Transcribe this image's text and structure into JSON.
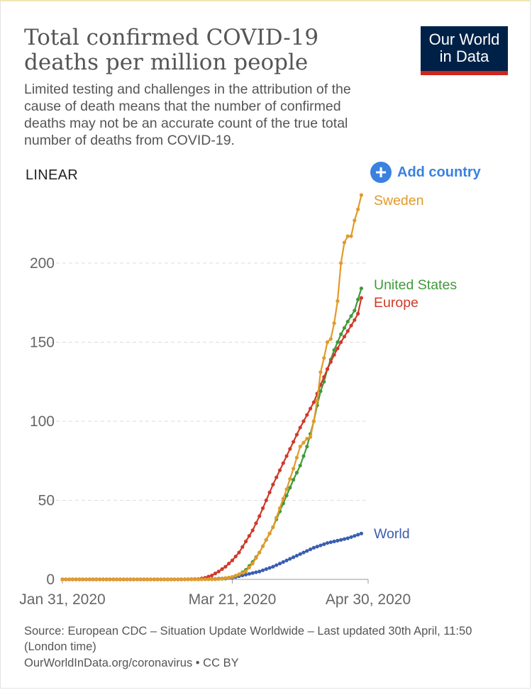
{
  "header": {
    "title": "Total confirmed COVID-19 deaths per million people",
    "subtitle": "Limited testing and challenges in the attribution of the cause of death means that the number of confirmed deaths may not be an accurate count of the true total number of deaths from COVID-19."
  },
  "logo": {
    "line1": "Our World",
    "line2": "in Data"
  },
  "controls": {
    "scale_label": "LINEAR",
    "add_country_label": "Add country",
    "add_icon": "+"
  },
  "footer": {
    "source": "Source: European CDC – Situation Update Worldwide – Last updated 30th April, 11:50 (London time)",
    "license": "OurWorldInData.org/coronavirus • CC BY"
  },
  "colors": {
    "sweden": "#e29a2a",
    "united_states": "#3f9a3a",
    "europe": "#cf3a2a",
    "world": "#3a5db0",
    "grid": "#dddddd",
    "axis": "#999999",
    "tick_text": "#666666"
  },
  "chart_data": {
    "type": "line",
    "title": "Total confirmed COVID-19 deaths per million people",
    "xlabel": "",
    "ylabel": "",
    "x_range_days": [
      0,
      90
    ],
    "x_ticks": [
      {
        "day": 0,
        "label": "Jan 31, 2020"
      },
      {
        "day": 50,
        "label": "Mar 21, 2020"
      },
      {
        "day": 90,
        "label": "Apr 30, 2020"
      }
    ],
    "ylim": [
      0,
      240
    ],
    "y_ticks": [
      0,
      50,
      100,
      150,
      200
    ],
    "grid": true,
    "series": [
      {
        "name": "Sweden",
        "key": "sweden",
        "keyframes": [
          [
            0,
            0
          ],
          [
            40,
            0
          ],
          [
            46,
            0.2
          ],
          [
            50,
            1.5
          ],
          [
            54,
            5
          ],
          [
            56,
            10
          ],
          [
            58,
            17
          ],
          [
            60,
            25
          ],
          [
            62,
            33
          ],
          [
            64,
            45
          ],
          [
            66,
            57
          ],
          [
            68,
            70
          ],
          [
            70,
            84
          ],
          [
            72,
            89
          ],
          [
            73,
            90
          ],
          [
            74,
            100
          ],
          [
            75,
            113
          ],
          [
            76,
            131
          ],
          [
            77,
            140
          ],
          [
            78,
            150
          ],
          [
            79,
            152
          ],
          [
            80,
            162
          ],
          [
            81,
            176
          ],
          [
            82,
            200
          ],
          [
            83,
            213
          ],
          [
            84,
            217
          ],
          [
            85,
            217
          ],
          [
            86,
            227
          ],
          [
            87,
            234
          ],
          [
            88,
            243
          ]
        ]
      },
      {
        "name": "United States",
        "key": "united_states",
        "keyframes": [
          [
            0,
            0
          ],
          [
            35,
            0
          ],
          [
            45,
            0.1
          ],
          [
            48,
            0.5
          ],
          [
            50,
            1.5
          ],
          [
            52,
            3
          ],
          [
            54,
            6
          ],
          [
            56,
            11
          ],
          [
            58,
            17
          ],
          [
            60,
            25
          ],
          [
            62,
            33
          ],
          [
            64,
            43
          ],
          [
            66,
            53
          ],
          [
            68,
            63
          ],
          [
            70,
            72
          ],
          [
            72,
            84
          ],
          [
            74,
            100
          ],
          [
            75,
            110
          ],
          [
            76,
            119
          ],
          [
            77,
            125
          ],
          [
            78,
            133
          ],
          [
            80,
            145
          ],
          [
            82,
            155
          ],
          [
            84,
            163
          ],
          [
            86,
            170
          ],
          [
            87,
            177
          ],
          [
            88,
            184
          ]
        ]
      },
      {
        "name": "Europe",
        "key": "europe",
        "keyframes": [
          [
            0,
            0
          ],
          [
            35,
            0
          ],
          [
            40,
            0.2
          ],
          [
            42,
            1
          ],
          [
            44,
            2.5
          ],
          [
            46,
            5
          ],
          [
            48,
            8
          ],
          [
            50,
            12
          ],
          [
            52,
            17
          ],
          [
            54,
            24
          ],
          [
            56,
            31
          ],
          [
            58,
            40
          ],
          [
            60,
            50
          ],
          [
            62,
            60
          ],
          [
            64,
            69
          ],
          [
            66,
            78
          ],
          [
            68,
            87
          ],
          [
            70,
            96
          ],
          [
            72,
            104
          ],
          [
            74,
            112
          ],
          [
            76,
            123
          ],
          [
            78,
            133
          ],
          [
            80,
            142
          ],
          [
            82,
            150
          ],
          [
            84,
            157
          ],
          [
            86,
            164
          ],
          [
            87,
            168
          ],
          [
            88,
            178
          ]
        ]
      },
      {
        "name": "World",
        "key": "world",
        "keyframes": [
          [
            0,
            0
          ],
          [
            35,
            0
          ],
          [
            45,
            0.3
          ],
          [
            50,
            1
          ],
          [
            54,
            3
          ],
          [
            58,
            5
          ],
          [
            62,
            8
          ],
          [
            66,
            12
          ],
          [
            70,
            16
          ],
          [
            74,
            20
          ],
          [
            78,
            23
          ],
          [
            80,
            24
          ],
          [
            82,
            25
          ],
          [
            84,
            26
          ],
          [
            86,
            27.5
          ],
          [
            88,
            29
          ]
        ]
      }
    ]
  }
}
